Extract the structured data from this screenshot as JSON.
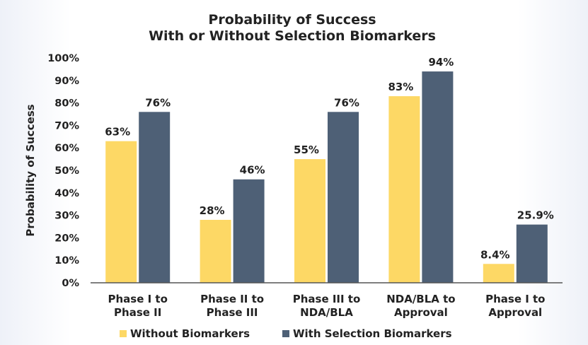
{
  "chart_data": {
    "type": "bar",
    "title_lines": [
      "Probability of Success",
      "With or Without Selection Biomarkers"
    ],
    "xlabel": "",
    "ylabel": "Probability of Success",
    "ylim": [
      0,
      100
    ],
    "yticks": [
      "0%",
      "10%",
      "20%",
      "30%",
      "40%",
      "50%",
      "60%",
      "70%",
      "80%",
      "90%",
      "100%"
    ],
    "categories": [
      [
        "Phase I to",
        "Phase II"
      ],
      [
        "Phase II to",
        "Phase III"
      ],
      [
        "Phase III to",
        "NDA/BLA"
      ],
      [
        "NDA/BLA to",
        "Approval"
      ],
      [
        "Phase I to",
        "Approval"
      ]
    ],
    "series": [
      {
        "name": "Without Biomarkers",
        "color": "#fdd865",
        "values": [
          63,
          28,
          55,
          83,
          8.4
        ],
        "labels": [
          "63%",
          "28%",
          "55%",
          "83%",
          "8.4%"
        ]
      },
      {
        "name": "With Selection Biomarkers",
        "color": "#4e6076",
        "values": [
          76,
          46,
          76,
          94,
          25.9
        ],
        "labels": [
          "76%",
          "46%",
          "76%",
          "94%",
          "25.9%"
        ]
      }
    ],
    "legend_position": "bottom",
    "grid": false
  }
}
